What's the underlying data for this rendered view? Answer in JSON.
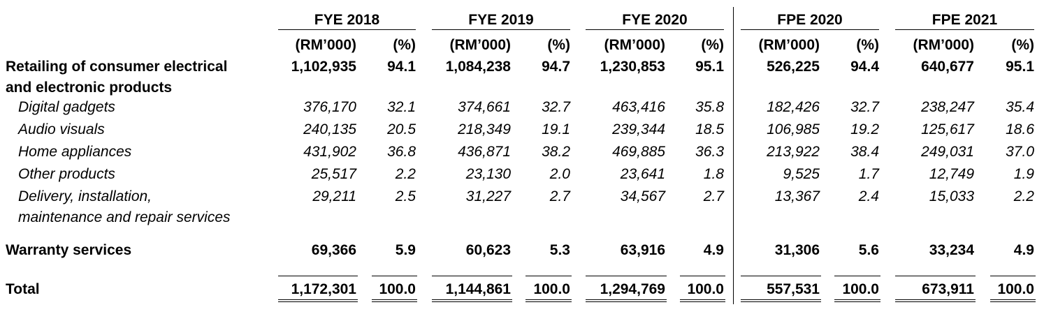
{
  "periods": [
    {
      "label": "FYE 2018"
    },
    {
      "label": "FYE 2019"
    },
    {
      "label": "FYE 2020"
    },
    {
      "label": "FPE 2020"
    },
    {
      "label": "FPE 2021"
    }
  ],
  "units": {
    "amount": "(RM’000)",
    "pct": "(%)"
  },
  "rows": [
    {
      "label": [
        "Retailing of consumer electrical",
        "and electronic products"
      ],
      "style": "bold",
      "values": [
        [
          "1,102,935",
          "94.1"
        ],
        [
          "1,084,238",
          "94.7"
        ],
        [
          "1,230,853",
          "95.1"
        ],
        [
          "526,225",
          "94.4"
        ],
        [
          "640,677",
          "95.1"
        ]
      ]
    },
    {
      "label": [
        "Digital gadgets"
      ],
      "style": "italic",
      "values": [
        [
          "376,170",
          "32.1"
        ],
        [
          "374,661",
          "32.7"
        ],
        [
          "463,416",
          "35.8"
        ],
        [
          "182,426",
          "32.7"
        ],
        [
          "238,247",
          "35.4"
        ]
      ]
    },
    {
      "label": [
        "Audio visuals"
      ],
      "style": "italic",
      "values": [
        [
          "240,135",
          "20.5"
        ],
        [
          "218,349",
          "19.1"
        ],
        [
          "239,344",
          "18.5"
        ],
        [
          "106,985",
          "19.2"
        ],
        [
          "125,617",
          "18.6"
        ]
      ]
    },
    {
      "label": [
        "Home appliances"
      ],
      "style": "italic",
      "values": [
        [
          "431,902",
          "36.8"
        ],
        [
          "436,871",
          "38.2"
        ],
        [
          "469,885",
          "36.3"
        ],
        [
          "213,922",
          "38.4"
        ],
        [
          "249,031",
          "37.0"
        ]
      ]
    },
    {
      "label": [
        "Other products"
      ],
      "style": "italic",
      "values": [
        [
          "25,517",
          "2.2"
        ],
        [
          "23,130",
          "2.0"
        ],
        [
          "23,641",
          "1.8"
        ],
        [
          "9,525",
          "1.7"
        ],
        [
          "12,749",
          "1.9"
        ]
      ]
    },
    {
      "label": [
        "Delivery, installation,",
        "maintenance and repair services"
      ],
      "style": "italic",
      "values": [
        [
          "29,211",
          "2.5"
        ],
        [
          "31,227",
          "2.7"
        ],
        [
          "34,567",
          "2.7"
        ],
        [
          "13,367",
          "2.4"
        ],
        [
          "15,033",
          "2.2"
        ]
      ]
    },
    {
      "label": [
        "Warranty services"
      ],
      "style": "bold",
      "values": [
        [
          "69,366",
          "5.9"
        ],
        [
          "60,623",
          "5.3"
        ],
        [
          "63,916",
          "4.9"
        ],
        [
          "31,306",
          "5.6"
        ],
        [
          "33,234",
          "4.9"
        ]
      ]
    },
    {
      "label": [
        "Total"
      ],
      "style": "bold",
      "values": [
        [
          "1,172,301",
          "100.0"
        ],
        [
          "1,144,861",
          "100.0"
        ],
        [
          "1,294,769",
          "100.0"
        ],
        [
          "557,531",
          "100.0"
        ],
        [
          "673,911",
          "100.0"
        ]
      ]
    }
  ]
}
